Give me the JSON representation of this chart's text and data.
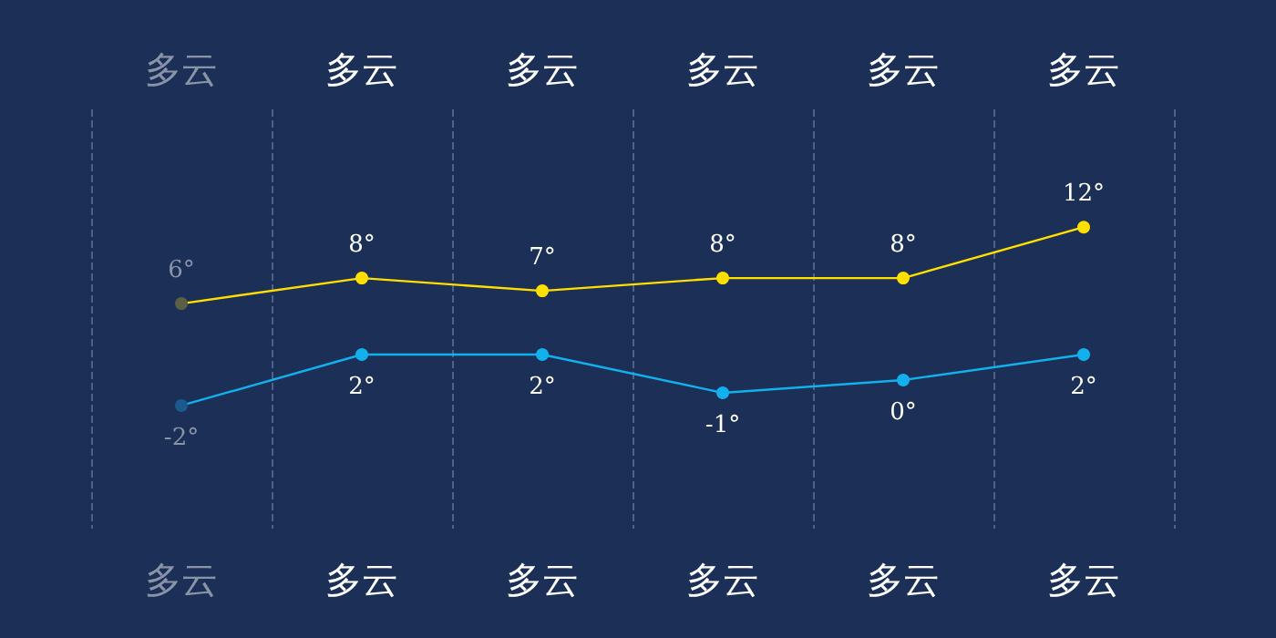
{
  "chart_data": {
    "type": "line",
    "categories": [
      "多云",
      "多云",
      "多云",
      "多云",
      "多云",
      "多云"
    ],
    "annotations": [
      "多云",
      "多云",
      "多云",
      "多云",
      "多云",
      "多云"
    ],
    "series": [
      {
        "color": "#ffdf00",
        "colors": [
          "#5b5f45",
          "#ffdf00",
          "#ffdf00",
          "#ffdf00",
          "#ffdf00",
          "#ffdf00"
        ],
        "values": [
          6,
          8,
          7,
          8,
          8,
          12
        ],
        "value_labels": [
          "6°",
          "8°",
          "7°",
          "8°",
          "8°",
          "12°"
        ]
      },
      {
        "color": "#12b0ec",
        "colors": [
          "#1a5a8c",
          "#12b0ec",
          "#12b0ec",
          "#12b0ec",
          "#12b0ec",
          "#12b0ec"
        ],
        "values": [
          -2,
          2,
          2,
          -1,
          0,
          2
        ],
        "value_labels": [
          "-2°",
          "2°",
          "2°",
          "-1°",
          "0°",
          "2°"
        ]
      }
    ],
    "grid": "x",
    "marker": "circle",
    "line_style": "solid"
  }
}
